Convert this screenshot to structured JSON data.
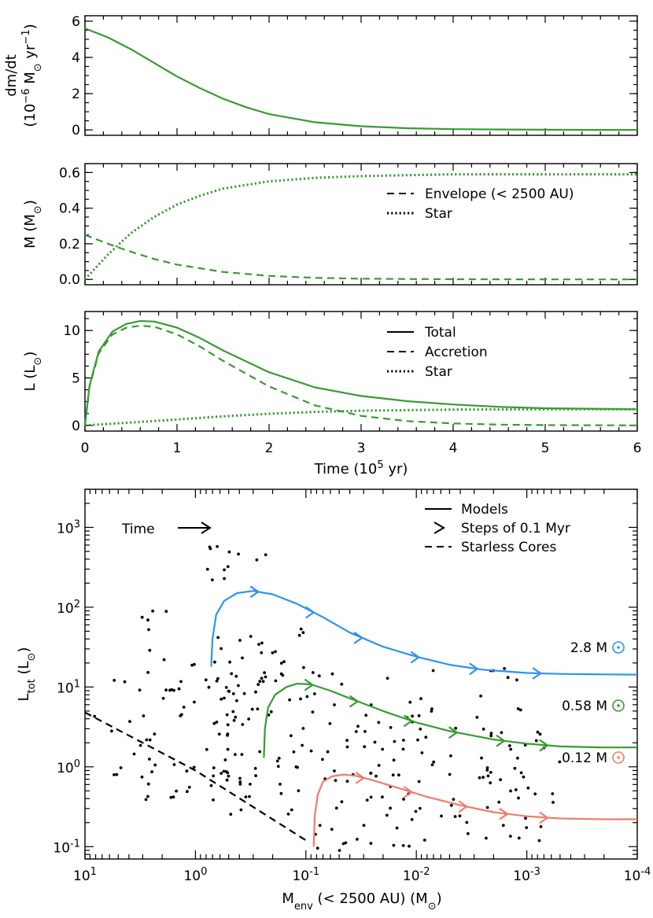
{
  "colors": {
    "green": "#3a9a33",
    "blue": "#2e93f0",
    "salmon": "#f07c6a",
    "black": "#000000"
  },
  "chart_data": [
    {
      "type": "line",
      "panel": "accretion-rate",
      "ylabel_parts": [
        "dm/dt",
        "(10",
        "−6",
        " M",
        "⊙",
        " yr",
        "−1",
        ")"
      ],
      "xlim": [
        0,
        6
      ],
      "ylim": [
        -0.3,
        6.3
      ],
      "yticks": [
        "0",
        "2",
        "4",
        "6"
      ],
      "grid": false,
      "series": [
        {
          "style": "solid",
          "color": "green",
          "x": [
            0,
            0.25,
            0.5,
            0.75,
            1.0,
            1.25,
            1.5,
            1.75,
            2.0,
            2.5,
            3.0,
            3.5,
            4.0,
            4.5,
            5.0,
            5.5,
            6.0
          ],
          "y": [
            5.6,
            5.1,
            4.45,
            3.7,
            2.95,
            2.3,
            1.72,
            1.25,
            0.87,
            0.42,
            0.2,
            0.09,
            0.04,
            0.02,
            0.01,
            0.0,
            0.0
          ]
        }
      ]
    },
    {
      "type": "line",
      "panel": "mass",
      "ylabel_parts": [
        "M (M",
        "⊙",
        ")"
      ],
      "xlim": [
        0,
        6
      ],
      "ylim": [
        -0.03,
        0.65
      ],
      "yticks": [
        "0.0",
        "0.2",
        "0.4",
        "0.6"
      ],
      "legend": [
        {
          "label": "Envelope (< 2500 AU)",
          "style": "dashed"
        },
        {
          "label": "Star",
          "style": "dotted"
        }
      ],
      "series": [
        {
          "name": "Envelope (< 2500 AU)",
          "style": "dashed",
          "color": "green",
          "x": [
            0,
            0.25,
            0.5,
            0.75,
            1.0,
            1.5,
            2.0,
            2.5,
            3.0,
            4.0,
            5.0,
            6.0
          ],
          "y": [
            0.25,
            0.2,
            0.155,
            0.115,
            0.083,
            0.042,
            0.02,
            0.009,
            0.004,
            0.001,
            0.0,
            0.0
          ]
        },
        {
          "name": "Star",
          "style": "dotted",
          "color": "green",
          "x": [
            0,
            0.25,
            0.5,
            0.75,
            1.0,
            1.25,
            1.5,
            2.0,
            2.5,
            3.0,
            3.5,
            4.0,
            5.0,
            6.0
          ],
          "y": [
            0.0,
            0.14,
            0.26,
            0.35,
            0.42,
            0.47,
            0.51,
            0.55,
            0.57,
            0.58,
            0.585,
            0.59,
            0.59,
            0.59
          ]
        }
      ]
    },
    {
      "type": "line",
      "panel": "luminosity",
      "ylabel_parts": [
        "L (L",
        "⊙",
        ")"
      ],
      "xlabel_parts": [
        "Time (10",
        "5",
        " yr)"
      ],
      "xlim": [
        0,
        6
      ],
      "ylim": [
        -0.6,
        12
      ],
      "xticks": [
        "0",
        "1",
        "2",
        "3",
        "4",
        "5",
        "6"
      ],
      "yticks": [
        "0",
        "5",
        "10"
      ],
      "legend": [
        {
          "label": "Total",
          "style": "solid"
        },
        {
          "label": "Accretion",
          "style": "dashed"
        },
        {
          "label": "Star",
          "style": "dotted"
        }
      ],
      "series": [
        {
          "name": "Total",
          "style": "solid",
          "color": "green",
          "x": [
            0,
            0.05,
            0.15,
            0.3,
            0.45,
            0.6,
            0.75,
            1.0,
            1.25,
            1.5,
            2.0,
            2.5,
            3.0,
            3.5,
            4.0,
            4.5,
            5.0,
            6.0
          ],
          "y": [
            0,
            4.2,
            7.8,
            9.9,
            10.7,
            11.0,
            10.95,
            10.3,
            9.2,
            7.9,
            5.6,
            4.0,
            3.1,
            2.55,
            2.2,
            1.95,
            1.8,
            1.7
          ]
        },
        {
          "name": "Accretion",
          "style": "dashed",
          "color": "green",
          "x": [
            0,
            0.05,
            0.15,
            0.3,
            0.45,
            0.6,
            0.75,
            1.0,
            1.25,
            1.5,
            2.0,
            2.5,
            3.0,
            3.5,
            4.0,
            4.5,
            5.0,
            6.0
          ],
          "y": [
            0,
            4.1,
            7.6,
            9.6,
            10.3,
            10.5,
            10.4,
            9.6,
            8.3,
            6.8,
            4.1,
            2.1,
            1.0,
            0.45,
            0.2,
            0.08,
            0.03,
            0.0
          ]
        },
        {
          "name": "Star",
          "style": "dotted",
          "color": "green",
          "x": [
            0,
            0.5,
            1.0,
            1.5,
            2.0,
            2.5,
            3.0,
            4.0,
            5.0,
            6.0
          ],
          "y": [
            0.0,
            0.3,
            0.62,
            0.95,
            1.22,
            1.42,
            1.55,
            1.66,
            1.7,
            1.7
          ]
        }
      ]
    },
    {
      "type": "scatter",
      "panel": "evolution-diagram",
      "ylabel_parts": [
        "L",
        "tot",
        " (L",
        "⊙",
        ")"
      ],
      "xlabel_parts": [
        "M",
        "env",
        " (< 2500 AU) (M",
        "⊙",
        ")"
      ],
      "xscale": "log",
      "yscale": "log",
      "x_reversed": true,
      "xlim": [
        10,
        0.0001
      ],
      "ylim": [
        0.07,
        3000
      ],
      "xticks": [
        {
          "b": "10",
          "e": "1"
        },
        {
          "b": "10",
          "e": "0"
        },
        {
          "b": "10",
          "e": "-1"
        },
        {
          "b": "10",
          "e": "-2"
        },
        {
          "b": "10",
          "e": "-3"
        },
        {
          "b": "10",
          "e": "-4"
        }
      ],
      "yticks": [
        {
          "b": "10",
          "e": "-1"
        },
        {
          "b": "10",
          "e": "0"
        },
        {
          "b": "10",
          "e": "1"
        },
        {
          "b": "10",
          "e": "2"
        },
        {
          "b": "10",
          "e": "3"
        }
      ],
      "legend": [
        {
          "label": "Models",
          "style": "solid"
        },
        {
          "label": "Steps of 0.1 Myr",
          "style": "arrow"
        },
        {
          "label": "Starless Cores",
          "style": "dashed"
        }
      ],
      "annotation": {
        "text": "Time"
      },
      "model_labels": [
        {
          "value": "2.8 M",
          "color": "blue"
        },
        {
          "value": "0.58 M",
          "color": "green"
        },
        {
          "value": "0.12 M",
          "color": "salmon"
        }
      ],
      "series": [
        {
          "name": "2.8 M⊙",
          "color": "blue",
          "x": [
            0.72,
            0.7,
            0.65,
            0.55,
            0.42,
            0.3,
            0.2,
            0.12,
            0.07,
            0.04,
            0.02,
            0.01,
            0.005,
            0.0025,
            0.001,
            0.0005,
            0.0002,
            0.0001
          ],
          "y": [
            18,
            40,
            80,
            120,
            150,
            160,
            145,
            110,
            75,
            48,
            32,
            24,
            19,
            16.5,
            15,
            14.6,
            14.4,
            14.3
          ],
          "arrows_x": [
            0.27,
            0.085,
            0.031,
            0.0095,
            0.0028,
            0.00075
          ]
        },
        {
          "name": "0.58 M⊙",
          "color": "green",
          "x": [
            0.24,
            0.235,
            0.22,
            0.19,
            0.15,
            0.12,
            0.09,
            0.06,
            0.04,
            0.02,
            0.01,
            0.005,
            0.002,
            0.001,
            0.0005,
            0.0002,
            0.0001
          ],
          "y": [
            1.3,
            3,
            5.5,
            8,
            10,
            11,
            10.8,
            9,
            7.2,
            5,
            3.6,
            2.8,
            2.2,
            1.95,
            1.8,
            1.75,
            1.75
          ],
          "arrows_x": [
            0.087,
            0.034,
            0.011,
            0.0043,
            0.0016,
            0.00065
          ]
        },
        {
          "name": "0.12 M⊙",
          "color": "salmon",
          "x": [
            0.085,
            0.083,
            0.078,
            0.07,
            0.058,
            0.045,
            0.035,
            0.025,
            0.015,
            0.008,
            0.004,
            0.002,
            0.001,
            0.0005,
            0.0002,
            0.0001
          ],
          "y": [
            0.1,
            0.25,
            0.45,
            0.65,
            0.76,
            0.8,
            0.77,
            0.68,
            0.55,
            0.42,
            0.33,
            0.27,
            0.24,
            0.225,
            0.22,
            0.22
          ],
          "arrows_x": [
            0.03,
            0.011,
            0.0035,
            0.0015,
            0.00065
          ]
        },
        {
          "name": "Starless Cores",
          "style": "dashed",
          "color": "black",
          "x": [
            10,
            1,
            0.1
          ],
          "y": [
            4.8,
            0.9,
            0.12
          ]
        },
        {
          "name": "points",
          "style": "dots",
          "color": "black",
          "values": "pseudo-random sample of protostars (approx. 320 points)"
        }
      ]
    }
  ]
}
